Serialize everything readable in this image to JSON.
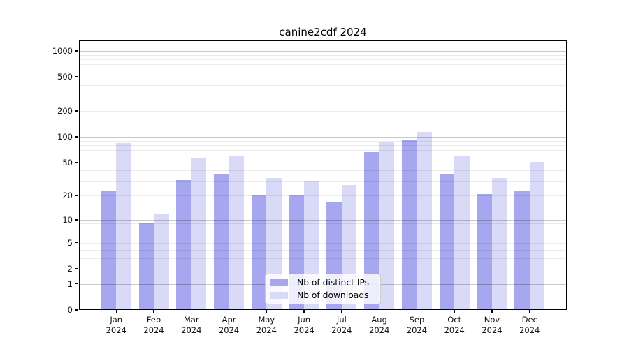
{
  "title": "canine2cdf 2024",
  "legend": {
    "items": [
      {
        "label": "Nb of distinct IPs",
        "color": "#a7a7ef"
      },
      {
        "label": "Nb of downloads",
        "color": "#d9d9f8"
      }
    ]
  },
  "chart_data": {
    "type": "bar",
    "title": "canine2cdf 2024",
    "categories": [
      "Jan",
      "Feb",
      "Mar",
      "Apr",
      "May",
      "Jun",
      "Jul",
      "Aug",
      "Sep",
      "Oct",
      "Nov",
      "Dec"
    ],
    "year": "2024",
    "series": [
      {
        "name": "Nb of distinct IPs",
        "color": "#a7a7ef",
        "values": [
          23,
          9,
          31,
          36,
          20,
          20,
          17,
          66,
          92,
          36,
          21,
          23
        ]
      },
      {
        "name": "Nb of downloads",
        "color": "#d9d9f8",
        "values": [
          84,
          12,
          57,
          60,
          33,
          30,
          27,
          86,
          114,
          59,
          33,
          51
        ]
      }
    ],
    "yscale": "log(value+1)",
    "yticks": [
      0,
      1,
      2,
      5,
      10,
      20,
      50,
      100,
      200,
      500,
      1000
    ],
    "grid_major": [
      1,
      10,
      100,
      1000
    ],
    "ylim": [
      0,
      1320
    ],
    "xlabel": "",
    "ylabel": "",
    "grid": "on",
    "legend_position": "lower center"
  }
}
